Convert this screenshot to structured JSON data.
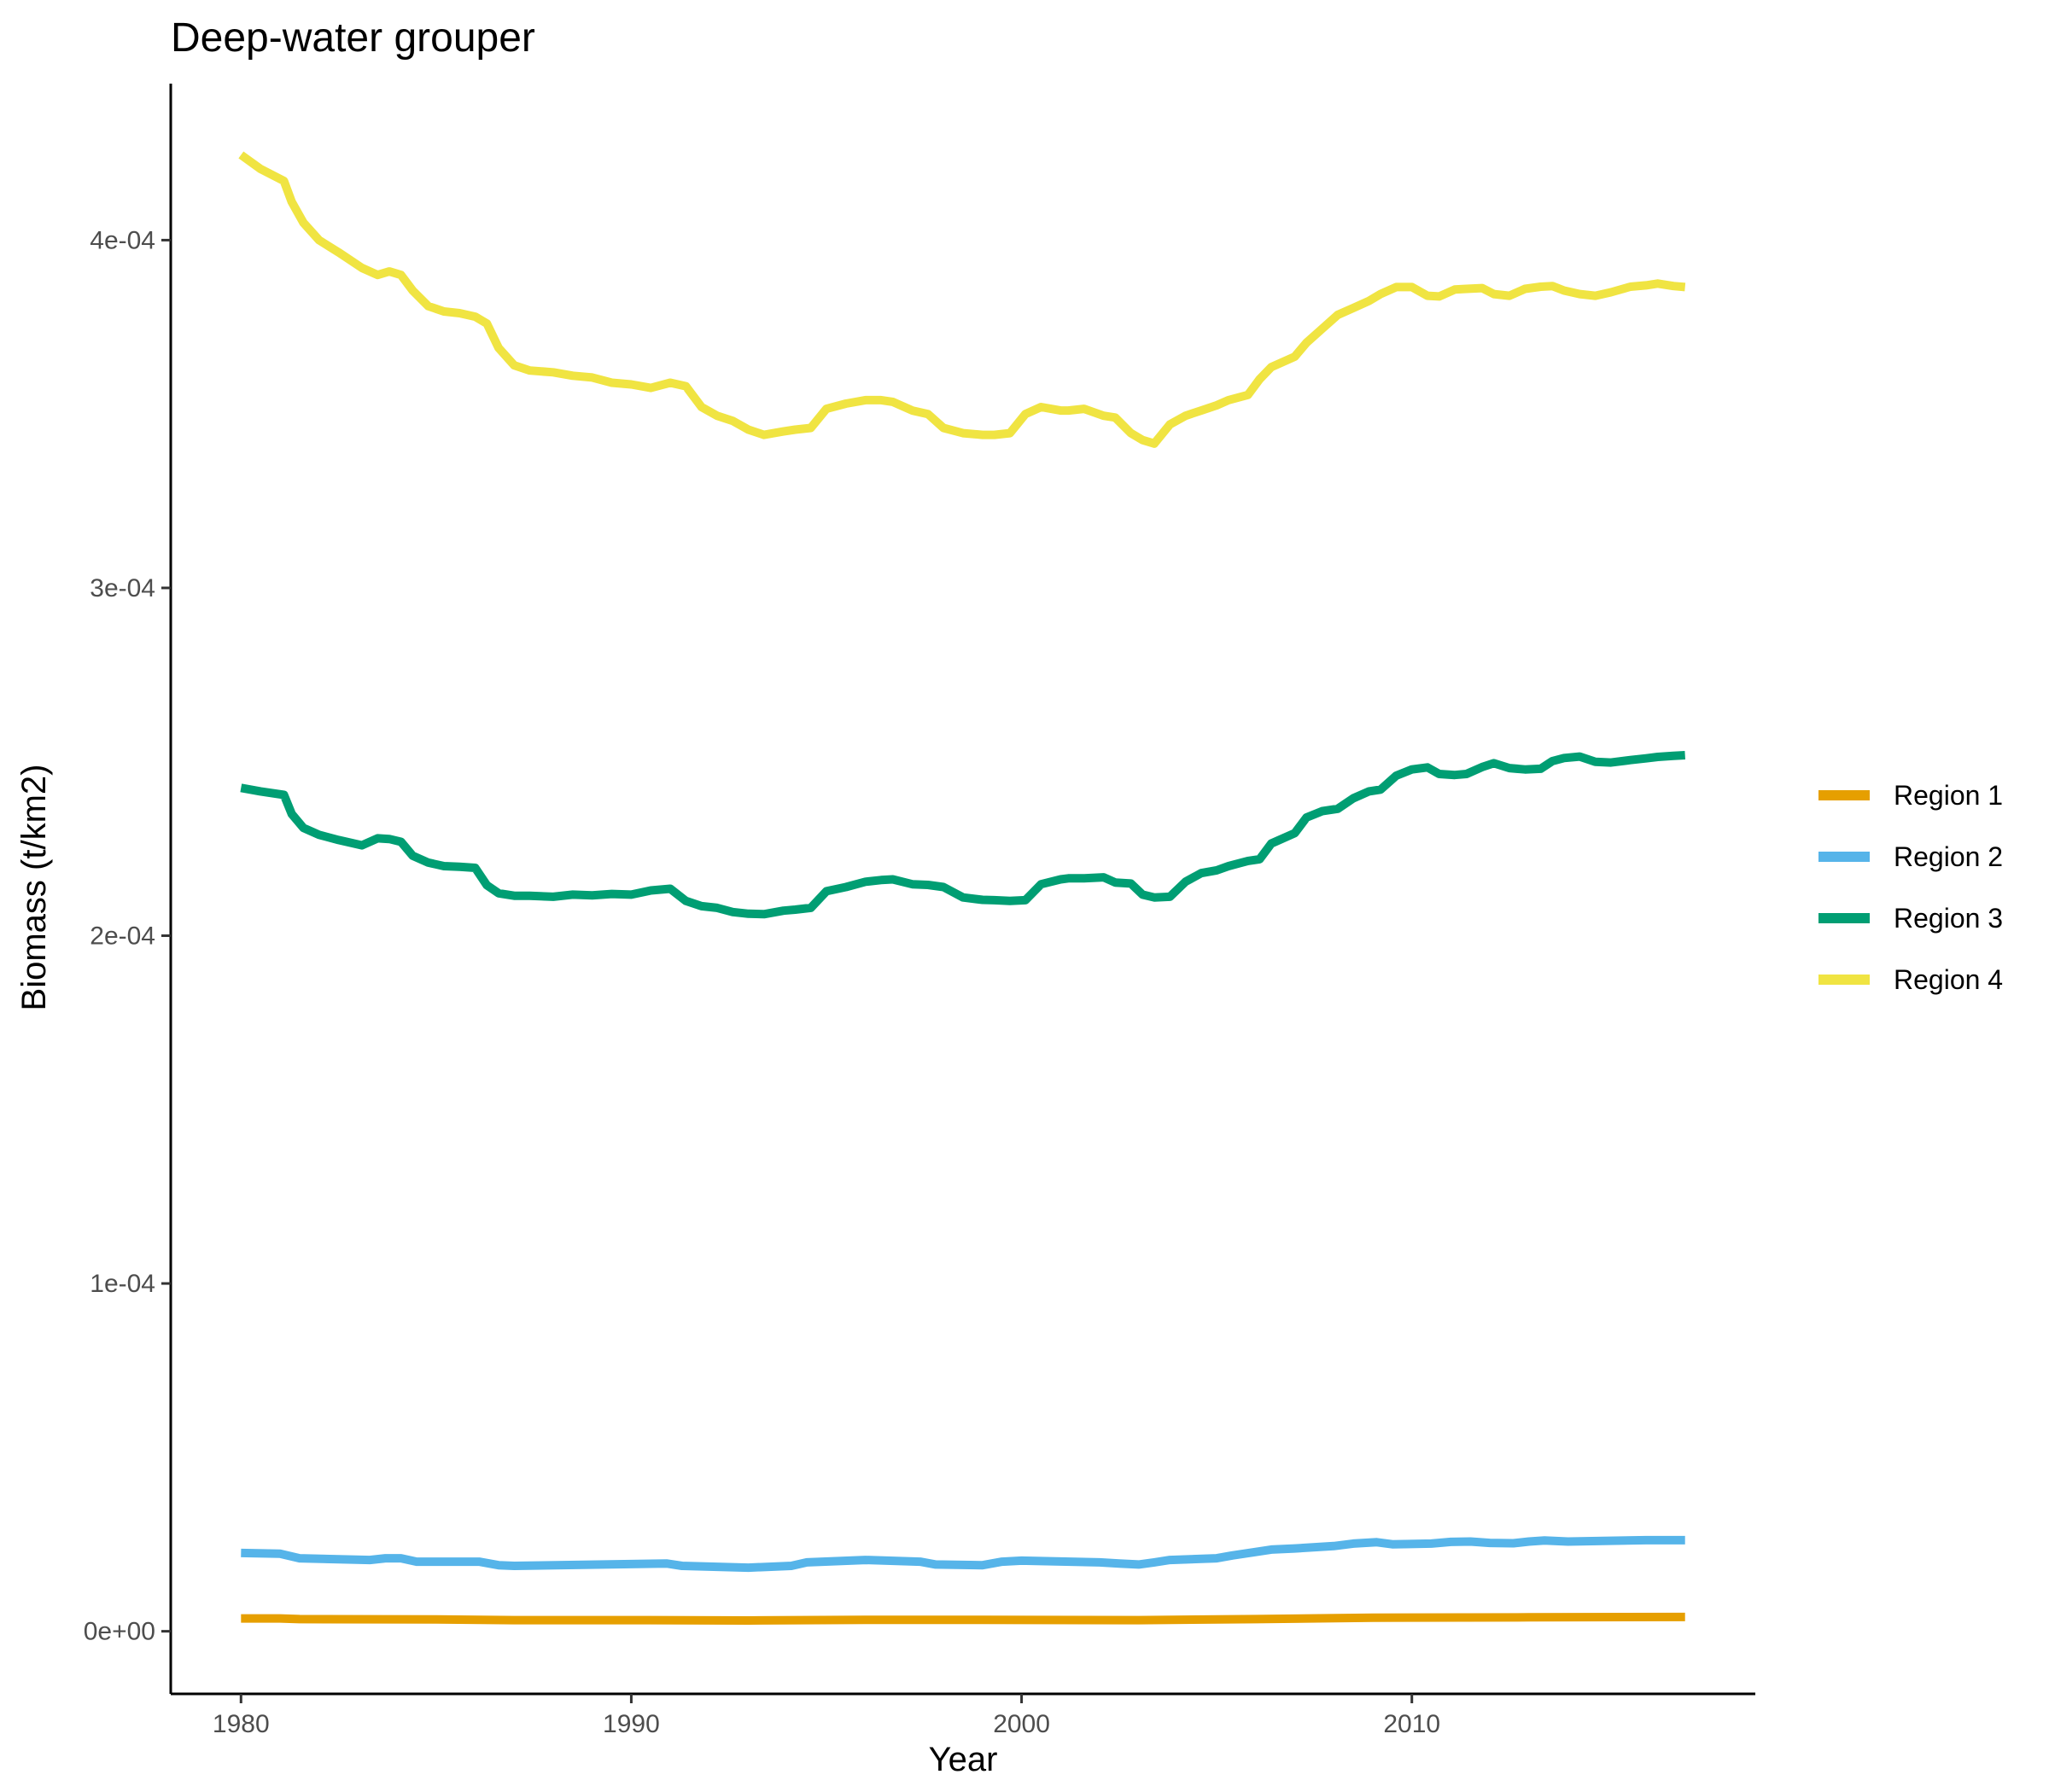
{
  "chart_data": {
    "type": "line",
    "title": "Deep-water grouper",
    "xlabel": "Year",
    "ylabel": "Biomass (t/km2)",
    "xlim": [
      1978.2,
      2018.8
    ],
    "ylim": [
      -1.8e-05,
      0.000445
    ],
    "x_ticks": [
      1980,
      1990,
      2000,
      2010
    ],
    "x_tick_labels": [
      "1980",
      "1990",
      "2000",
      "2010"
    ],
    "y_ticks": [
      0,
      0.0001,
      0.0002,
      0.0003,
      0.0004
    ],
    "y_tick_labels": [
      "0e+00",
      "1e-04",
      "2e-04",
      "3e-04",
      "4e-04"
    ],
    "grid": false,
    "legend_position": "right",
    "series": [
      {
        "name": "Region 1",
        "color": "#E69F00",
        "x": [
          1980.0,
          1981.0,
          1981.5,
          1985.0,
          1987.0,
          1990.0,
          1993.0,
          1996.0,
          1999.0,
          2003.0,
          2006.0,
          2009.0,
          2013.0,
          2017.0
        ],
        "y": [
          3.7e-06,
          3.7e-06,
          3.5e-06,
          3.4e-06,
          3.2e-06,
          3.2e-06,
          3.1e-06,
          3.3e-06,
          3.3e-06,
          3.2e-06,
          3.5e-06,
          3.9e-06,
          4e-06,
          4.1e-06
        ]
      },
      {
        "name": "Region 2",
        "color": "#56B4E9",
        "x": [
          1980.0,
          1981.0,
          1981.5,
          1983.3,
          1983.7,
          1984.1,
          1984.5,
          1986.1,
          1986.6,
          1987.0,
          1990.9,
          1991.3,
          1993.0,
          1994.1,
          1994.5,
          1996.0,
          1997.4,
          1997.8,
          1999.0,
          1999.5,
          2000.0,
          2002.0,
          2002.5,
          2003.0,
          2003.4,
          2003.8,
          2005.0,
          2005.4,
          2006.0,
          2006.4,
          2007.0,
          2008.0,
          2008.5,
          2009.1,
          2009.5,
          2010.5,
          2011.0,
          2011.5,
          2012.0,
          2012.6,
          2013.0,
          2013.4,
          2014.0,
          2016.0,
          2017.0
        ],
        "y": [
          2.25e-05,
          2.23e-05,
          2.1e-05,
          2.05e-05,
          2.1e-05,
          2.1e-05,
          2e-05,
          2e-05,
          1.9e-05,
          1.88e-05,
          1.95e-05,
          1.88e-05,
          1.83e-05,
          1.88e-05,
          1.98e-05,
          2.05e-05,
          2e-05,
          1.92e-05,
          1.9e-05,
          2e-05,
          2.03e-05,
          1.98e-05,
          1.95e-05,
          1.92e-05,
          1.98e-05,
          2.05e-05,
          2.1e-05,
          2.18e-05,
          2.28e-05,
          2.35e-05,
          2.38e-05,
          2.45e-05,
          2.52e-05,
          2.56e-05,
          2.5e-05,
          2.52e-05,
          2.57e-05,
          2.58e-05,
          2.54e-05,
          2.53e-05,
          2.58e-05,
          2.61e-05,
          2.58e-05,
          2.62e-05,
          2.62e-05
        ]
      },
      {
        "name": "Region 3",
        "color": "#009E73",
        "x": [
          1980.0,
          1980.5,
          1981.1,
          1981.3,
          1981.6,
          1982.0,
          1982.5,
          1983.1,
          1983.5,
          1983.8,
          1984.1,
          1984.4,
          1984.8,
          1985.2,
          1985.6,
          1986.0,
          1986.3,
          1986.6,
          1987.0,
          1987.4,
          1988.0,
          1988.5,
          1989.0,
          1989.5,
          1990.0,
          1990.5,
          1991.0,
          1991.4,
          1991.8,
          1992.2,
          1992.6,
          1993.0,
          1993.4,
          1993.9,
          1994.2,
          1994.6,
          1995.0,
          1995.5,
          1996.0,
          1996.4,
          1996.7,
          1997.2,
          1997.6,
          1998.0,
          1998.5,
          1999.0,
          1999.3,
          1999.7,
          2000.1,
          2000.5,
          2001.0,
          2001.2,
          2001.6,
          2002.1,
          2002.4,
          2002.8,
          2003.1,
          2003.4,
          2003.8,
          2004.2,
          2004.6,
          2005.0,
          2005.3,
          2005.8,
          2006.1,
          2006.4,
          2007.0,
          2007.3,
          2007.7,
          2008.1,
          2008.5,
          2008.9,
          2009.2,
          2009.6,
          2010.0,
          2010.4,
          2010.7,
          2011.1,
          2011.4,
          2011.8,
          2012.1,
          2012.5,
          2012.9,
          2013.3,
          2013.6,
          2013.9,
          2014.3,
          2014.7,
          2015.1,
          2015.6,
          2016.0,
          2016.3,
          2016.7,
          2017.0
        ],
        "y": [
          0.0002425,
          0.0002415,
          0.0002405,
          0.000235,
          0.000231,
          0.000229,
          0.0002275,
          0.000226,
          0.000228,
          0.0002278,
          0.000227,
          0.000223,
          0.000221,
          0.00022,
          0.0002198,
          0.0002195,
          0.0002145,
          0.0002122,
          0.0002115,
          0.0002115,
          0.0002112,
          0.0002118,
          0.0002116,
          0.000212,
          0.0002118,
          0.000213,
          0.0002135,
          0.00021,
          0.0002085,
          0.000208,
          0.0002068,
          0.0002063,
          0.0002062,
          0.0002072,
          0.0002075,
          0.000208,
          0.0002128,
          0.000214,
          0.0002155,
          0.000216,
          0.0002162,
          0.0002148,
          0.0002146,
          0.000214,
          0.000211,
          0.0002103,
          0.0002102,
          0.00021,
          0.0002102,
          0.0002148,
          0.0002162,
          0.0002165,
          0.0002165,
          0.0002168,
          0.0002153,
          0.000215,
          0.0002118,
          0.000211,
          0.0002112,
          0.0002155,
          0.000218,
          0.0002188,
          0.00022,
          0.0002215,
          0.000222,
          0.0002265,
          0.0002295,
          0.000234,
          0.0002358,
          0.0002365,
          0.0002395,
          0.0002415,
          0.000242,
          0.000246,
          0.0002478,
          0.0002484,
          0.0002465,
          0.0002462,
          0.0002465,
          0.0002485,
          0.0002496,
          0.0002482,
          0.0002478,
          0.000248,
          0.0002502,
          0.0002511,
          0.0002515,
          0.00025,
          0.0002498,
          0.0002505,
          0.000251,
          0.0002514,
          0.0002517,
          0.0002519
        ]
      },
      {
        "name": "Region 4",
        "color": "#F0E442",
        "x": [
          1980.0,
          1980.5,
          1981.1,
          1981.3,
          1981.6,
          1982.0,
          1982.5,
          1983.1,
          1983.5,
          1983.8,
          1984.1,
          1984.4,
          1984.8,
          1985.2,
          1985.6,
          1986.0,
          1986.3,
          1986.6,
          1987.0,
          1987.4,
          1988.0,
          1988.5,
          1989.0,
          1989.5,
          1990.0,
          1990.5,
          1991.0,
          1991.4,
          1991.8,
          1992.2,
          1992.6,
          1993.0,
          1993.4,
          1993.9,
          1994.2,
          1994.6,
          1995.0,
          1995.5,
          1996.0,
          1996.4,
          1996.7,
          1997.2,
          1997.6,
          1998.0,
          1998.5,
          1999.0,
          1999.3,
          1999.7,
          2000.1,
          2000.5,
          2001.0,
          2001.2,
          2001.6,
          2002.1,
          2002.4,
          2002.8,
          2003.1,
          2003.4,
          2003.8,
          2004.2,
          2004.6,
          2005.0,
          2005.3,
          2005.8,
          2006.1,
          2006.4,
          2007.0,
          2007.3,
          2007.7,
          2008.1,
          2008.5,
          2008.9,
          2009.2,
          2009.6,
          2010.0,
          2010.4,
          2010.7,
          2011.1,
          2011.4,
          2011.8,
          2012.1,
          2012.5,
          2012.9,
          2013.3,
          2013.6,
          2013.9,
          2014.3,
          2014.7,
          2015.1,
          2015.6,
          2016.0,
          2016.3,
          2016.7,
          2017.0
        ],
        "y": [
          0.0004245,
          0.0004205,
          0.000417,
          0.000411,
          0.000405,
          0.0004,
          0.0003965,
          0.000392,
          0.00039,
          0.000391,
          0.00039,
          0.0003855,
          0.000381,
          0.0003795,
          0.000379,
          0.000378,
          0.000376,
          0.000369,
          0.000364,
          0.0003625,
          0.000362,
          0.000361,
          0.0003605,
          0.000359,
          0.0003585,
          0.0003575,
          0.000359,
          0.000358,
          0.000352,
          0.0003495,
          0.000348,
          0.0003455,
          0.000344,
          0.000345,
          0.0003455,
          0.000346,
          0.0003515,
          0.000353,
          0.000354,
          0.000354,
          0.0003535,
          0.000351,
          0.00035,
          0.000346,
          0.0003445,
          0.000344,
          0.000344,
          0.0003445,
          0.00035,
          0.000352,
          0.000351,
          0.000351,
          0.0003515,
          0.0003495,
          0.000349,
          0.0003445,
          0.0003425,
          0.0003415,
          0.000347,
          0.0003495,
          0.000351,
          0.0003525,
          0.000354,
          0.0003555,
          0.00036,
          0.0003635,
          0.0003665,
          0.0003705,
          0.0003745,
          0.0003785,
          0.0003805,
          0.0003825,
          0.0003845,
          0.0003865,
          0.0003865,
          0.000384,
          0.0003838,
          0.0003858,
          0.000386,
          0.0003862,
          0.0003845,
          0.000384,
          0.000386,
          0.0003866,
          0.0003868,
          0.0003855,
          0.0003845,
          0.000384,
          0.000385,
          0.0003866,
          0.000387,
          0.0003875,
          0.0003868,
          0.0003865
        ]
      }
    ]
  }
}
